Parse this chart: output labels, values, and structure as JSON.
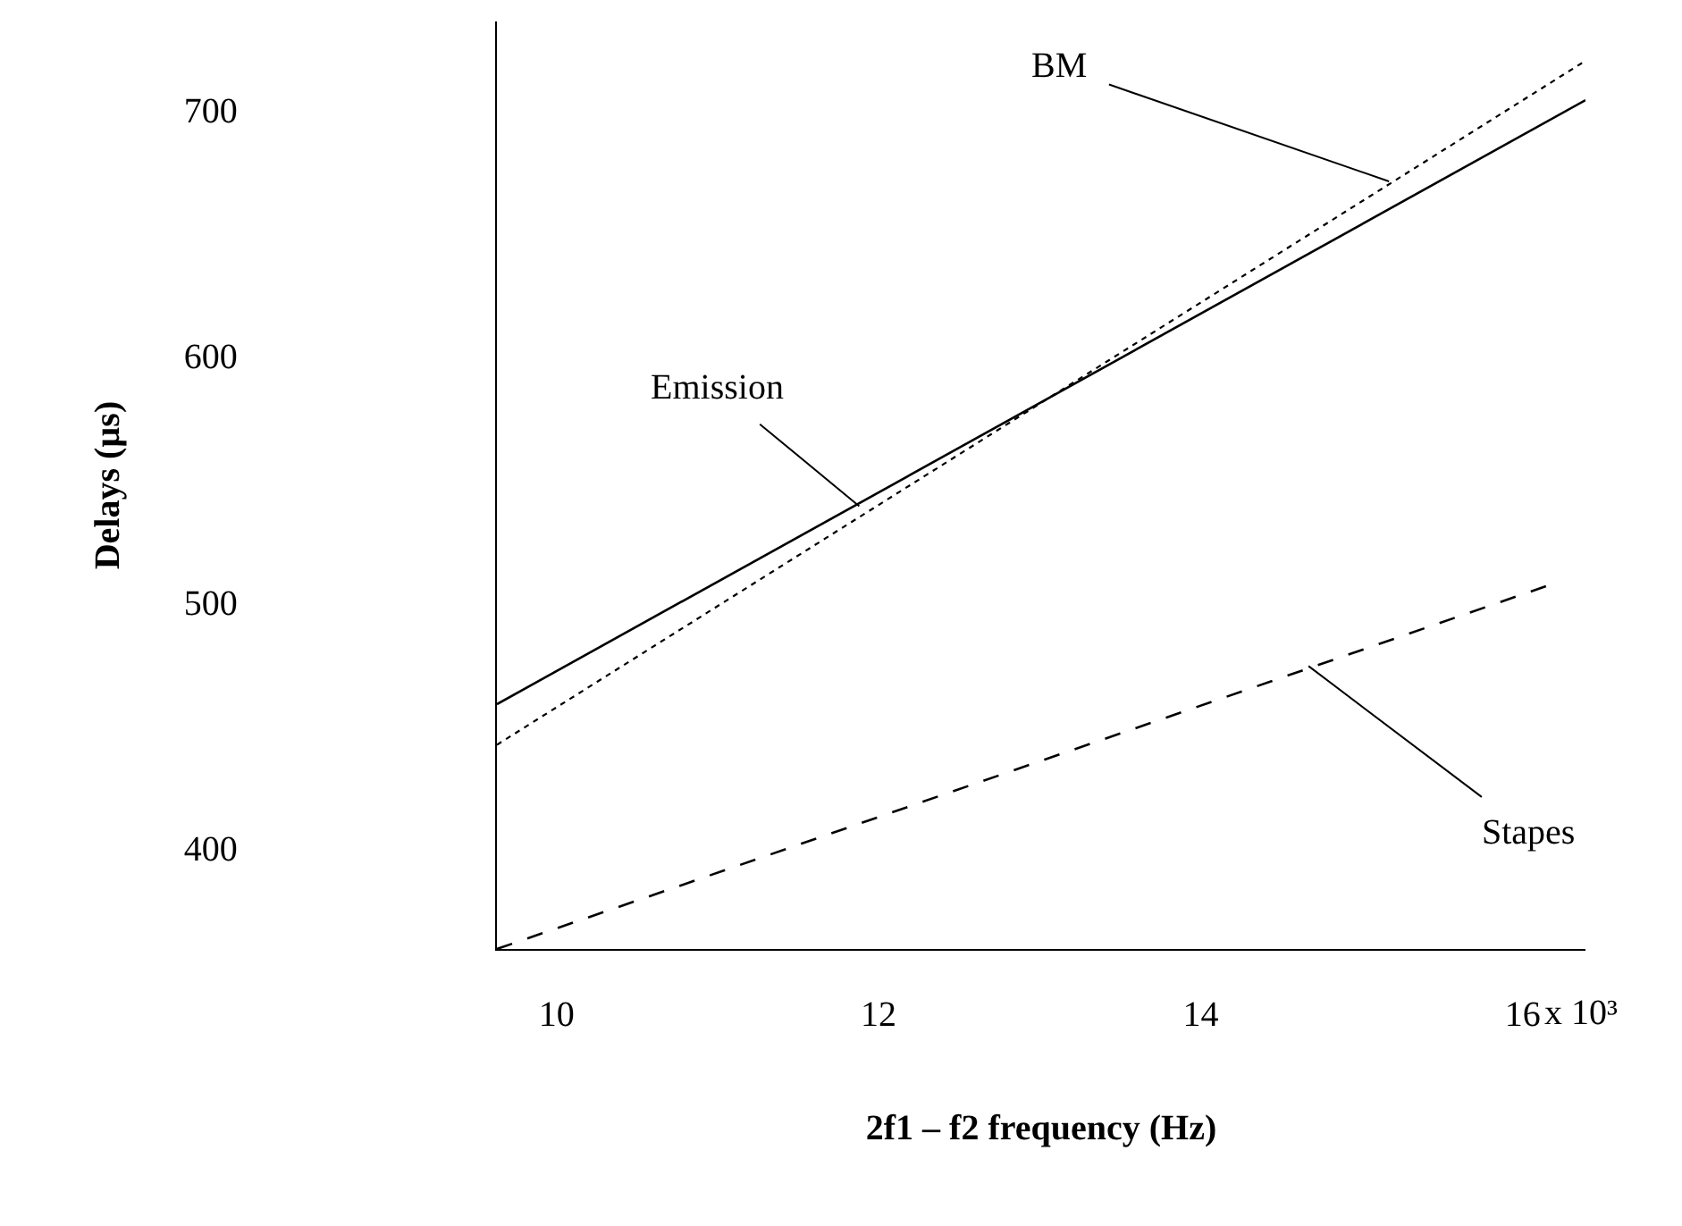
{
  "chart_data": {
    "type": "line",
    "xlabel": "2f1 – f2 frequency (Hz)",
    "ylabel": "Delays (µs)",
    "xlim": [
      9.63,
      16.39
    ],
    "xticks": [
      10,
      12,
      14,
      16
    ],
    "ylim": [
      359,
      736
    ],
    "yticks": [
      400,
      500,
      600,
      700
    ],
    "marker": "none",
    "series": [
      {
        "color": "#000000",
        "line_style": "solid",
        "x": [
          9.63,
          16.39
        ],
        "values": [
          458.5,
          704
        ]
      },
      {
        "color": "#000000",
        "line_style": "dotted",
        "x": [
          9.63,
          16.39
        ],
        "values": [
          442,
          720
        ]
      },
      {
        "color": "#000000",
        "line_style": "dashed",
        "x": [
          9.63,
          16.17
        ],
        "values": [
          359,
          507
        ]
      }
    ],
    "annotations": [
      {
        "text": "Emission",
        "x": 11.88,
        "y": 539
      },
      {
        "text": "BM",
        "x": 15.17,
        "y": 671
      },
      {
        "text": "Stapes",
        "x": 14.67,
        "y": 474
      },
      "x 10³"
    ]
  }
}
